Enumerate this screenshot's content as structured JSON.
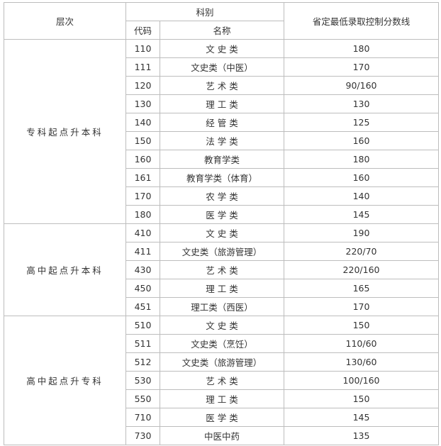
{
  "header": {
    "level": "层次",
    "subject": "科别",
    "code": "代码",
    "name": "名称",
    "score": "省定最低录取控制分数线"
  },
  "groups": [
    {
      "level": "专科起点升本科",
      "rows": [
        {
          "code": "110",
          "name": "文 史 类",
          "score": "180"
        },
        {
          "code": "111",
          "name": "文史类（中医）",
          "score": "170"
        },
        {
          "code": "120",
          "name": "艺 术 类",
          "score": "90/160"
        },
        {
          "code": "130",
          "name": "理 工 类",
          "score": "130"
        },
        {
          "code": "140",
          "name": "经 管 类",
          "score": "125"
        },
        {
          "code": "150",
          "name": "法 学 类",
          "score": "160"
        },
        {
          "code": "160",
          "name": "教育学类",
          "score": "180"
        },
        {
          "code": "161",
          "name": "教育学类（体育）",
          "score": "160"
        },
        {
          "code": "170",
          "name": "农 学 类",
          "score": "140"
        },
        {
          "code": "180",
          "name": "医 学 类",
          "score": "145"
        }
      ]
    },
    {
      "level": "高中起点升本科",
      "rows": [
        {
          "code": "410",
          "name": "文 史 类",
          "score": "190"
        },
        {
          "code": "411",
          "name": "文史类（旅游管理）",
          "score": "220/70"
        },
        {
          "code": "430",
          "name": "艺 术 类",
          "score": "220/160"
        },
        {
          "code": "450",
          "name": "理 工 类",
          "score": "165"
        },
        {
          "code": "451",
          "name": "理工类（西医）",
          "score": "170"
        }
      ]
    },
    {
      "level": "高中起点升专科",
      "rows": [
        {
          "code": "510",
          "name": "文 史 类",
          "score": "150"
        },
        {
          "code": "511",
          "name": "文史类（烹饪）",
          "score": "110/60"
        },
        {
          "code": "512",
          "name": "文史类（旅游管理）",
          "score": "130/60"
        },
        {
          "code": "530",
          "name": "艺 术 类",
          "score": "100/160"
        },
        {
          "code": "550",
          "name": "理 工 类",
          "score": "150"
        },
        {
          "code": "710",
          "name": "医 学 类",
          "score": "145"
        },
        {
          "code": "730",
          "name": "中医中药",
          "score": "135"
        }
      ]
    }
  ]
}
